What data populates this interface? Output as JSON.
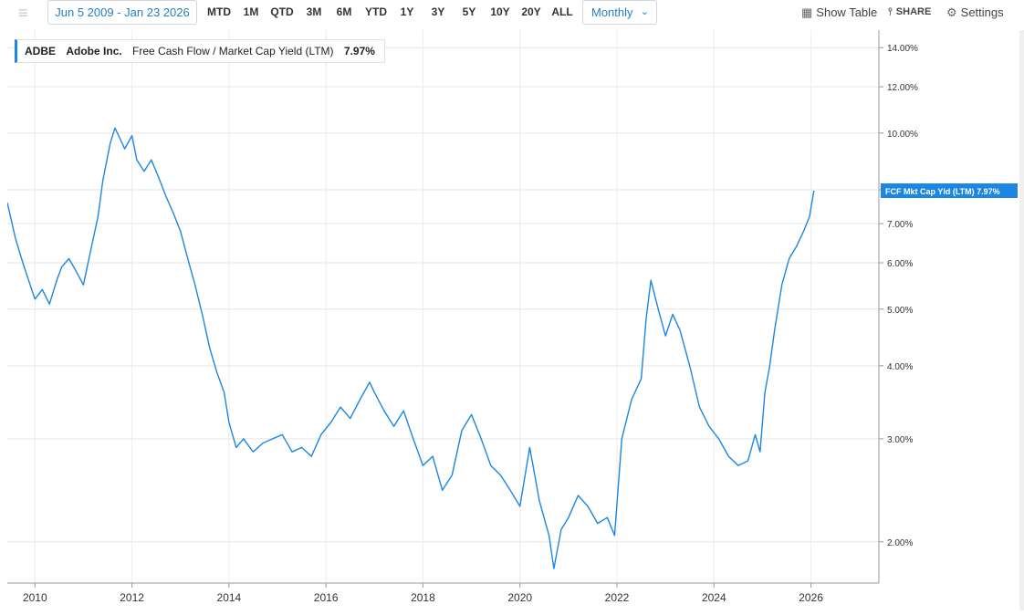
{
  "toolbar": {
    "date_range": "Jun 5 2009 - Jan 23 2026",
    "ranges": [
      "MTD",
      "1M",
      "QTD",
      "3M",
      "6M",
      "YTD",
      "1Y",
      "3Y",
      "5Y",
      "10Y",
      "20Y",
      "ALL"
    ],
    "frequency": "Monthly",
    "show_table": "Show Table",
    "share": "SHARE",
    "settings": "Settings"
  },
  "legend": {
    "ticker": "ADBE",
    "company": "Adobe Inc.",
    "metric": "Free Cash Flow / Market Cap Yield (LTM)",
    "value": "7.97%"
  },
  "chart_data": {
    "type": "line",
    "title": "",
    "xlabel": "",
    "ylabel": "",
    "y_scale": "log",
    "xlim": [
      2009.43,
      2027.4
    ],
    "ylim": [
      1.7,
      15.0
    ],
    "x_ticks": [
      2010,
      2012,
      2014,
      2016,
      2018,
      2020,
      2022,
      2024,
      2026
    ],
    "x_tick_labels": [
      "2010",
      "2012",
      "2014",
      "2016",
      "2018",
      "2020",
      "2022",
      "2024",
      "2026"
    ],
    "y_ticks": [
      2,
      3,
      4,
      5,
      6,
      7,
      8,
      10,
      12,
      14
    ],
    "y_tick_labels": [
      "2.00%",
      "3.00%",
      "4.00%",
      "5.00%",
      "6.00%",
      "7.00%",
      "",
      "10.00%",
      "12.00%",
      "14.00%"
    ],
    "grid": true,
    "color": "#1c86e3",
    "end_label": {
      "text": "FCF Mkt Cap Yld (LTM)",
      "value": "7.97%"
    },
    "series": [
      {
        "x": [
          2009.43,
          2009.6,
          2009.75,
          2009.9,
          2010.0,
          2010.15,
          2010.3,
          2010.45,
          2010.55,
          2010.7,
          2010.85,
          2011.0,
          2011.15,
          2011.3,
          2011.4,
          2011.55,
          2011.65,
          2011.75,
          2011.85,
          2012.0,
          2012.1,
          2012.25,
          2012.4,
          2012.55,
          2012.7,
          2012.85,
          2013.0,
          2013.15,
          2013.3,
          2013.45,
          2013.6,
          2013.75,
          2013.9,
          2014.0,
          2014.15,
          2014.3,
          2014.5,
          2014.7,
          2014.9,
          2015.1,
          2015.3,
          2015.5,
          2015.7,
          2015.9,
          2016.1,
          2016.3,
          2016.5,
          2016.7,
          2016.9,
          2017.0,
          2017.2,
          2017.4,
          2017.6,
          2017.8,
          2018.0,
          2018.2,
          2018.4,
          2018.6,
          2018.8,
          2019.0,
          2019.2,
          2019.4,
          2019.6,
          2019.8,
          2020.0,
          2020.2,
          2020.4,
          2020.6,
          2020.7,
          2020.85,
          2021.0,
          2021.2,
          2021.4,
          2021.6,
          2021.8,
          2021.95,
          2022.1,
          2022.3,
          2022.5,
          2022.6,
          2022.7,
          2022.85,
          2023.0,
          2023.15,
          2023.3,
          2023.5,
          2023.7,
          2023.9,
          2024.1,
          2024.3,
          2024.5,
          2024.7,
          2024.85,
          2024.95,
          2025.05,
          2025.15,
          2025.25,
          2025.4,
          2025.55,
          2025.7,
          2025.85,
          2025.97,
          2026.06
        ],
        "y": [
          7.6,
          6.6,
          6.0,
          5.5,
          5.2,
          5.4,
          5.1,
          5.6,
          5.9,
          6.1,
          5.8,
          5.5,
          6.3,
          7.2,
          8.3,
          9.6,
          10.2,
          9.8,
          9.4,
          9.9,
          9.0,
          8.6,
          9.0,
          8.4,
          7.8,
          7.3,
          6.8,
          6.1,
          5.5,
          4.9,
          4.3,
          3.9,
          3.6,
          3.2,
          2.9,
          3.0,
          2.85,
          2.95,
          3.0,
          3.05,
          2.85,
          2.9,
          2.8,
          3.05,
          3.2,
          3.4,
          3.25,
          3.5,
          3.75,
          3.6,
          3.35,
          3.15,
          3.35,
          3.0,
          2.7,
          2.8,
          2.45,
          2.6,
          3.1,
          3.3,
          3.0,
          2.7,
          2.6,
          2.45,
          2.3,
          2.9,
          2.35,
          2.05,
          1.8,
          2.1,
          2.2,
          2.4,
          2.3,
          2.15,
          2.2,
          2.05,
          3.0,
          3.5,
          3.8,
          4.8,
          5.6,
          5.0,
          4.5,
          4.9,
          4.6,
          4.0,
          3.4,
          3.15,
          3.0,
          2.8,
          2.7,
          2.75,
          3.05,
          2.85,
          3.6,
          4.0,
          4.6,
          5.5,
          6.1,
          6.4,
          6.8,
          7.2,
          7.97
        ]
      }
    ]
  }
}
